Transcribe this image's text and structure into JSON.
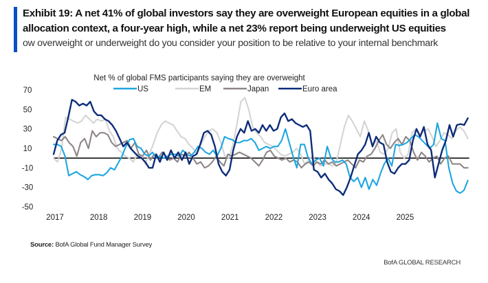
{
  "header": {
    "title": "Exhibit 19: A net 41% of global investors say they are overweight European equities in a global allocation context, a four-year high, while a net 23% report being underweight US equities",
    "subtitle": "ow overweight or underweight do you consider your position to be relative to your internal benchmark"
  },
  "footer": {
    "source_label": "Source:",
    "source_text": "BofA Global Fund Manager Survey",
    "brand": "BofA GLOBAL RESEARCH"
  },
  "chart_data": {
    "type": "line",
    "title": "Net % of global FMS participants saying they are overweight",
    "xlabel": "",
    "ylabel": "",
    "ylim": [
      -50,
      70
    ],
    "yticks": [
      70,
      50,
      30,
      10,
      -10,
      -30,
      -50
    ],
    "xticks": [
      "2017",
      "2018",
      "2019",
      "2020",
      "2021",
      "2022",
      "2023",
      "2024",
      "2025"
    ],
    "x_start": "2017-01",
    "x_frequency": "monthly",
    "zero_line": true,
    "grid": false,
    "legend_position": "top-center",
    "series": [
      {
        "name": "US",
        "color": "#1ea6e0",
        "values": [
          14,
          14,
          12,
          2,
          -18,
          -16,
          -14,
          -17,
          -19,
          -22,
          -18,
          -17,
          -17,
          -18,
          -15,
          -10,
          -12,
          -5,
          2,
          12,
          19,
          20,
          12,
          10,
          4,
          2,
          6,
          0,
          2,
          0,
          2,
          4,
          4,
          2,
          8,
          4,
          2,
          6,
          12,
          10,
          6,
          4,
          8,
          2,
          10,
          22,
          20,
          19,
          16,
          16,
          18,
          18,
          20,
          16,
          8,
          10,
          12,
          10,
          12,
          12,
          18,
          30,
          16,
          2,
          -10,
          14,
          14,
          0,
          -6,
          -2,
          0,
          -8,
          12,
          0,
          -4,
          -4,
          -2,
          -6,
          -20,
          -24,
          -20,
          -30,
          -20,
          -32,
          -22,
          -28,
          -16,
          -6,
          0,
          -8,
          14,
          13,
          14,
          16,
          20,
          24,
          22,
          18,
          14,
          10,
          14,
          36,
          20,
          18,
          -10,
          -26,
          -34,
          -36,
          -33,
          -23
        ]
      },
      {
        "name": "EM",
        "color": "#d4d4d4",
        "values": [
          0,
          -4,
          10,
          42,
          40,
          38,
          36,
          38,
          44,
          40,
          36,
          40,
          38,
          40,
          28,
          22,
          10,
          6,
          2,
          0,
          -4,
          4,
          2,
          -6,
          4,
          14,
          26,
          34,
          38,
          36,
          34,
          28,
          22,
          20,
          14,
          10,
          4,
          14,
          22,
          28,
          30,
          26,
          16,
          2,
          0,
          14,
          34,
          58,
          62,
          50,
          32,
          26,
          22,
          16,
          14,
          12,
          8,
          4,
          2,
          4,
          6,
          10,
          4,
          -6,
          -2,
          2,
          -4,
          -8,
          -6,
          -6,
          -8,
          -4,
          14,
          32,
          44,
          38,
          30,
          22,
          38,
          28,
          12,
          18,
          6,
          4,
          10,
          26,
          30,
          6,
          0,
          4,
          26,
          30,
          24,
          28,
          30,
          22,
          12,
          18,
          26,
          24,
          20,
          28,
          32,
          28,
          20
        ]
      },
      {
        "name": "Japan",
        "color": "#8e8686",
        "values": [
          22,
          20,
          18,
          22,
          16,
          12,
          2,
          16,
          20,
          10,
          28,
          22,
          26,
          26,
          24,
          16,
          12,
          14,
          16,
          18,
          10,
          16,
          4,
          2,
          8,
          -2,
          4,
          0,
          6,
          2,
          -2,
          0,
          -4,
          4,
          2,
          6,
          0,
          -6,
          -4,
          -10,
          -8,
          -4,
          2,
          -4,
          -8,
          4,
          2,
          4,
          6,
          4,
          2,
          0,
          -4,
          -8,
          -2,
          6,
          8,
          2,
          0,
          -2,
          0,
          -4,
          -2,
          -4,
          -10,
          -6,
          -4,
          -8,
          -4,
          -6,
          -2,
          -6,
          -4,
          -8,
          -6,
          -4,
          -2,
          -6,
          -10,
          -2,
          -4,
          2,
          4,
          10,
          18,
          24,
          14,
          10,
          16,
          20,
          14,
          22,
          18,
          6,
          -2,
          6,
          2,
          -4,
          0,
          2,
          -6,
          0,
          2,
          -6,
          -6,
          -6,
          -10,
          -10
        ]
      },
      {
        "name": "Euro area",
        "color": "#0c2c79",
        "values": [
          4,
          18,
          24,
          26,
          42,
          60,
          58,
          54,
          56,
          54,
          58,
          48,
          44,
          44,
          40,
          38,
          34,
          28,
          20,
          12,
          16,
          10,
          6,
          2,
          0,
          -4,
          -10,
          -10,
          4,
          -4,
          6,
          -2,
          8,
          0,
          6,
          -2,
          6,
          -6,
          2,
          4,
          14,
          26,
          28,
          24,
          12,
          -6,
          -14,
          -18,
          -12,
          8,
          22,
          30,
          26,
          38,
          28,
          30,
          26,
          34,
          28,
          34,
          28,
          30,
          42,
          46,
          38,
          40,
          36,
          34,
          32,
          34,
          28,
          -12,
          -14,
          -20,
          -16,
          -22,
          -26,
          -32,
          -34,
          -38,
          -30,
          -20,
          -8,
          4,
          8,
          14,
          26,
          12,
          22,
          16,
          14,
          -4,
          -14,
          -16,
          -10,
          -6,
          -6,
          -2,
          18,
          30,
          22,
          32,
          14,
          8,
          -20,
          -6,
          8,
          18,
          34,
          22,
          34,
          35,
          34,
          41
        ]
      }
    ]
  }
}
